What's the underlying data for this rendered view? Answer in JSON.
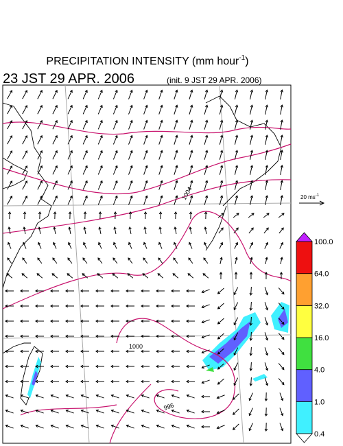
{
  "header": {
    "title": "PRECIPITATION INTENSITY (mm hour",
    "title_sup": "-1",
    "title_end": ")",
    "valid_time": "23 JST 29 APR. 2006",
    "init_time": "(init. 9 JST 29 APR. 2006)"
  },
  "reference_vector": {
    "label": "20 ms",
    "label_sup": "-1"
  },
  "isobar_labels": [
    "1004",
    "1000",
    "996"
  ],
  "colorbar": {
    "labels": [
      "0.4",
      "1.0",
      "4.0",
      "16.0",
      "32.0",
      "64.0",
      "100.0"
    ],
    "colors": [
      "#40f0ff",
      "#6060ff",
      "#40e040",
      "#ffff40",
      "#ffa030",
      "#ee1010"
    ],
    "over_color": "#c020ff",
    "under_color": "#ffffff"
  }
}
